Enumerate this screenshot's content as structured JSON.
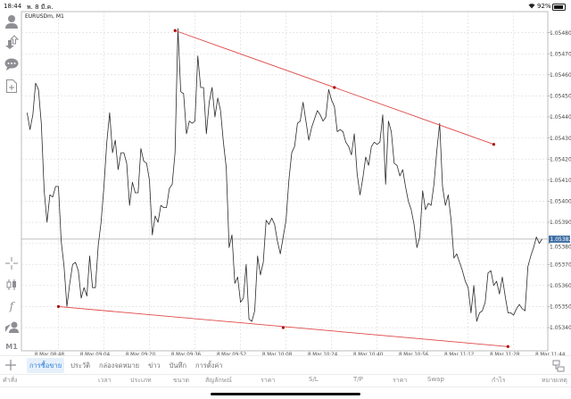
{
  "status_bar": {
    "time": "18:44",
    "date": "พ. 8 มี.ค.",
    "battery": "92%"
  },
  "chart_header": {
    "symbol": "EURUSDm, M1"
  },
  "left_toolbar": [
    {
      "icon": "account-icon"
    },
    {
      "icon": "trade-arrows-icon"
    },
    {
      "icon": "chat-icon"
    },
    {
      "icon": "new-document-icon"
    },
    {
      "icon": "crosshair-icon"
    },
    {
      "icon": "candlestick-icon"
    },
    {
      "icon": "indicator-f-icon"
    },
    {
      "icon": "objects-icon"
    },
    {
      "icon": "timeframe",
      "label": "M1"
    }
  ],
  "colors": {
    "price_line": "#2b2b2b",
    "trendline": "#e04848",
    "trend_point": "#b00000",
    "current_price_bg": "#3f6ea5",
    "grid": "#d9d9d9",
    "active_tab": "#2f7fd6"
  },
  "chart_data": {
    "type": "line",
    "symbol": "EURUSDm",
    "timeframe": "M1",
    "xlim": [
      "08:35",
      "11:40"
    ],
    "ylim": [
      1.05329,
      1.0549
    ],
    "grid": true,
    "current_price": 1.05382,
    "current_price_label": "1.05382",
    "yticks": [
      "1.05480",
      "1.05470",
      "1.05460",
      "1.05450",
      "1.05440",
      "1.05430",
      "1.05420",
      "1.05410",
      "1.05400",
      "1.05390",
      "1.05380",
      "1.05370",
      "1.05360",
      "1.05350",
      "1.05340"
    ],
    "xticks": [
      {
        "time": "08:48",
        "label": "8 Mar 08:48"
      },
      {
        "time": "09:04",
        "label": "8 Mar 09:04"
      },
      {
        "time": "09:20",
        "label": "8 Mar 09:20"
      },
      {
        "time": "09:36",
        "label": "8 Mar 09:36"
      },
      {
        "time": "09:52",
        "label": "8 Mar 09:52"
      },
      {
        "time": "10:08",
        "label": "8 Mar 10:08"
      },
      {
        "time": "10:24",
        "label": "8 Mar 10:24"
      },
      {
        "time": "10:40",
        "label": "8 Mar 10:40"
      },
      {
        "time": "10:56",
        "label": "8 Mar 10:56"
      },
      {
        "time": "11:12",
        "label": "8 Mar 11:12"
      },
      {
        "time": "11:28",
        "label": "8 Mar 11:28"
      },
      {
        "time": "11:44",
        "label": "8 Mar 11:44"
      }
    ],
    "x": [
      "08:37",
      "08:38",
      "08:39",
      "08:40",
      "08:41",
      "08:42",
      "08:43",
      "08:44",
      "08:45",
      "08:46",
      "08:47",
      "08:48",
      "08:49",
      "08:50",
      "08:51",
      "08:52",
      "08:53",
      "08:54",
      "08:55",
      "08:56",
      "08:57",
      "08:58",
      "08:59",
      "09:00",
      "09:01",
      "09:02",
      "09:03",
      "09:04",
      "09:05",
      "09:06",
      "09:07",
      "09:08",
      "09:09",
      "09:10",
      "09:11",
      "09:12",
      "09:13",
      "09:14",
      "09:15",
      "09:16",
      "09:17",
      "09:18",
      "09:19",
      "09:20",
      "09:21",
      "09:22",
      "09:23",
      "09:24",
      "09:25",
      "09:26",
      "09:27",
      "09:28",
      "09:29",
      "09:30",
      "09:31",
      "09:32",
      "09:33",
      "09:34",
      "09:35",
      "09:36",
      "09:37",
      "09:38",
      "09:39",
      "09:40",
      "09:41",
      "09:42",
      "09:43",
      "09:44",
      "09:45",
      "09:46",
      "09:47",
      "09:48",
      "09:49",
      "09:50",
      "09:51",
      "09:52",
      "09:53",
      "09:54",
      "09:55",
      "09:56",
      "09:57",
      "09:58",
      "09:59",
      "10:00",
      "10:01",
      "10:02",
      "10:03",
      "10:04",
      "10:05",
      "10:06",
      "10:07",
      "10:08",
      "10:09",
      "10:10",
      "10:11",
      "10:12",
      "10:13",
      "10:14",
      "10:15",
      "10:16",
      "10:17",
      "10:18",
      "10:19",
      "10:20",
      "10:21",
      "10:22",
      "10:23",
      "10:24",
      "10:25",
      "10:26",
      "10:27",
      "10:28",
      "10:29",
      "10:30",
      "10:31",
      "10:32",
      "10:33",
      "10:34",
      "10:35",
      "10:36",
      "10:37",
      "10:38",
      "10:39",
      "10:40",
      "10:41",
      "10:42",
      "10:43",
      "10:44",
      "10:45",
      "10:46",
      "10:47",
      "10:48",
      "10:49",
      "10:50",
      "10:51",
      "10:52",
      "10:53",
      "10:54",
      "10:55",
      "10:56",
      "10:57",
      "10:58",
      "10:59",
      "11:00",
      "11:01",
      "11:02",
      "11:03",
      "11:04",
      "11:05",
      "11:06",
      "11:07",
      "11:08",
      "11:09",
      "11:10",
      "11:11",
      "11:12",
      "11:13",
      "11:14",
      "11:15",
      "11:16",
      "11:17",
      "11:18",
      "11:19",
      "11:20",
      "11:21",
      "11:22",
      "11:23",
      "11:24",
      "11:25",
      "11:26",
      "11:27",
      "11:28",
      "11:29",
      "11:30",
      "11:31",
      "11:32",
      "11:33",
      "11:34",
      "11:35",
      "11:36",
      "11:37",
      "11:38"
    ],
    "y": [
      1.05442,
      1.05434,
      1.05441,
      1.05456,
      1.05453,
      1.05437,
      1.05405,
      1.0539,
      1.05403,
      1.05402,
      1.05407,
      1.05407,
      1.05381,
      1.05369,
      1.0535,
      1.05361,
      1.0537,
      1.05371,
      1.05367,
      1.05354,
      1.05359,
      1.05355,
      1.05374,
      1.05359,
      1.05359,
      1.05379,
      1.0539,
      1.05407,
      1.05428,
      1.05442,
      1.05423,
      1.05429,
      1.05415,
      1.05423,
      1.05423,
      1.05418,
      1.05398,
      1.05409,
      1.05404,
      1.05404,
      1.05425,
      1.05419,
      1.05418,
      1.0541,
      1.05384,
      1.05393,
      1.0539,
      1.05398,
      1.05397,
      1.05397,
      1.05406,
      1.05408,
      1.05423,
      1.05482,
      1.05452,
      1.05451,
      1.05432,
      1.05438,
      1.05437,
      1.05438,
      1.05469,
      1.05454,
      1.05454,
      1.05432,
      1.05447,
      1.05454,
      1.0544,
      1.05449,
      1.05443,
      1.05428,
      1.05416,
      1.05378,
      1.05384,
      1.05361,
      1.05364,
      1.05352,
      1.05354,
      1.0537,
      1.05344,
      1.05343,
      1.05348,
      1.05374,
      1.05365,
      1.05371,
      1.05391,
      1.05389,
      1.05392,
      1.05389,
      1.05381,
      1.05375,
      1.05383,
      1.05391,
      1.0541,
      1.05423,
      1.05426,
      1.05437,
      1.05438,
      1.05447,
      1.05438,
      1.05429,
      1.05435,
      1.05439,
      1.05443,
      1.05441,
      1.05438,
      1.0544,
      1.05453,
      1.05448,
      1.05445,
      1.05433,
      1.05434,
      1.05433,
      1.05428,
      1.05426,
      1.05422,
      1.05432,
      1.05413,
      1.05403,
      1.05411,
      1.05421,
      1.05417,
      1.05426,
      1.05428,
      1.05427,
      1.05428,
      1.05441,
      1.05408,
      1.05438,
      1.05433,
      1.05418,
      1.05417,
      1.05412,
      1.05415,
      1.05407,
      1.054,
      1.05396,
      1.05389,
      1.05378,
      1.05383,
      1.05405,
      1.05396,
      1.05399,
      1.05398,
      1.05408,
      1.05424,
      1.05437,
      1.05407,
      1.05398,
      1.05403,
      1.05391,
      1.05373,
      1.05375,
      1.05371,
      1.05367,
      1.05362,
      1.05359,
      1.05347,
      1.0536,
      1.05343,
      1.05347,
      1.05348,
      1.05352,
      1.05366,
      1.05367,
      1.0536,
      1.05362,
      1.05356,
      1.05364,
      1.05355,
      1.05347,
      1.05347,
      1.05346,
      1.05349,
      1.05351,
      1.05349,
      1.05348,
      1.05369,
      1.05374,
      1.05378,
      1.05383,
      1.0538,
      1.05382
    ],
    "trendlines": [
      {
        "points": [
          [
            "09:29",
            1.05481
          ],
          [
            "10:25",
            1.05454
          ],
          [
            "11:21",
            1.05427
          ]
        ]
      },
      {
        "points": [
          [
            "08:48",
            1.0535
          ],
          [
            "10:07",
            1.0534
          ],
          [
            "11:26",
            1.05331
          ]
        ]
      }
    ]
  },
  "bottom_tabs": [
    {
      "label": "การซื้อขาย",
      "active": true
    },
    {
      "label": "ประวัติ"
    },
    {
      "label": "กล่องจดหมาย"
    },
    {
      "label": "ข่าว"
    },
    {
      "label": "บันทึก"
    },
    {
      "label": "การตั้งค่า"
    }
  ],
  "table_columns": [
    "คำสั่ง",
    "เวลา",
    "ประเภท",
    "ขนาด",
    "สัญลักษณ์",
    "ราคา",
    "S/L",
    "T/P",
    "ราคา",
    "Swap",
    "กำไร",
    "หมายเหตุ"
  ]
}
